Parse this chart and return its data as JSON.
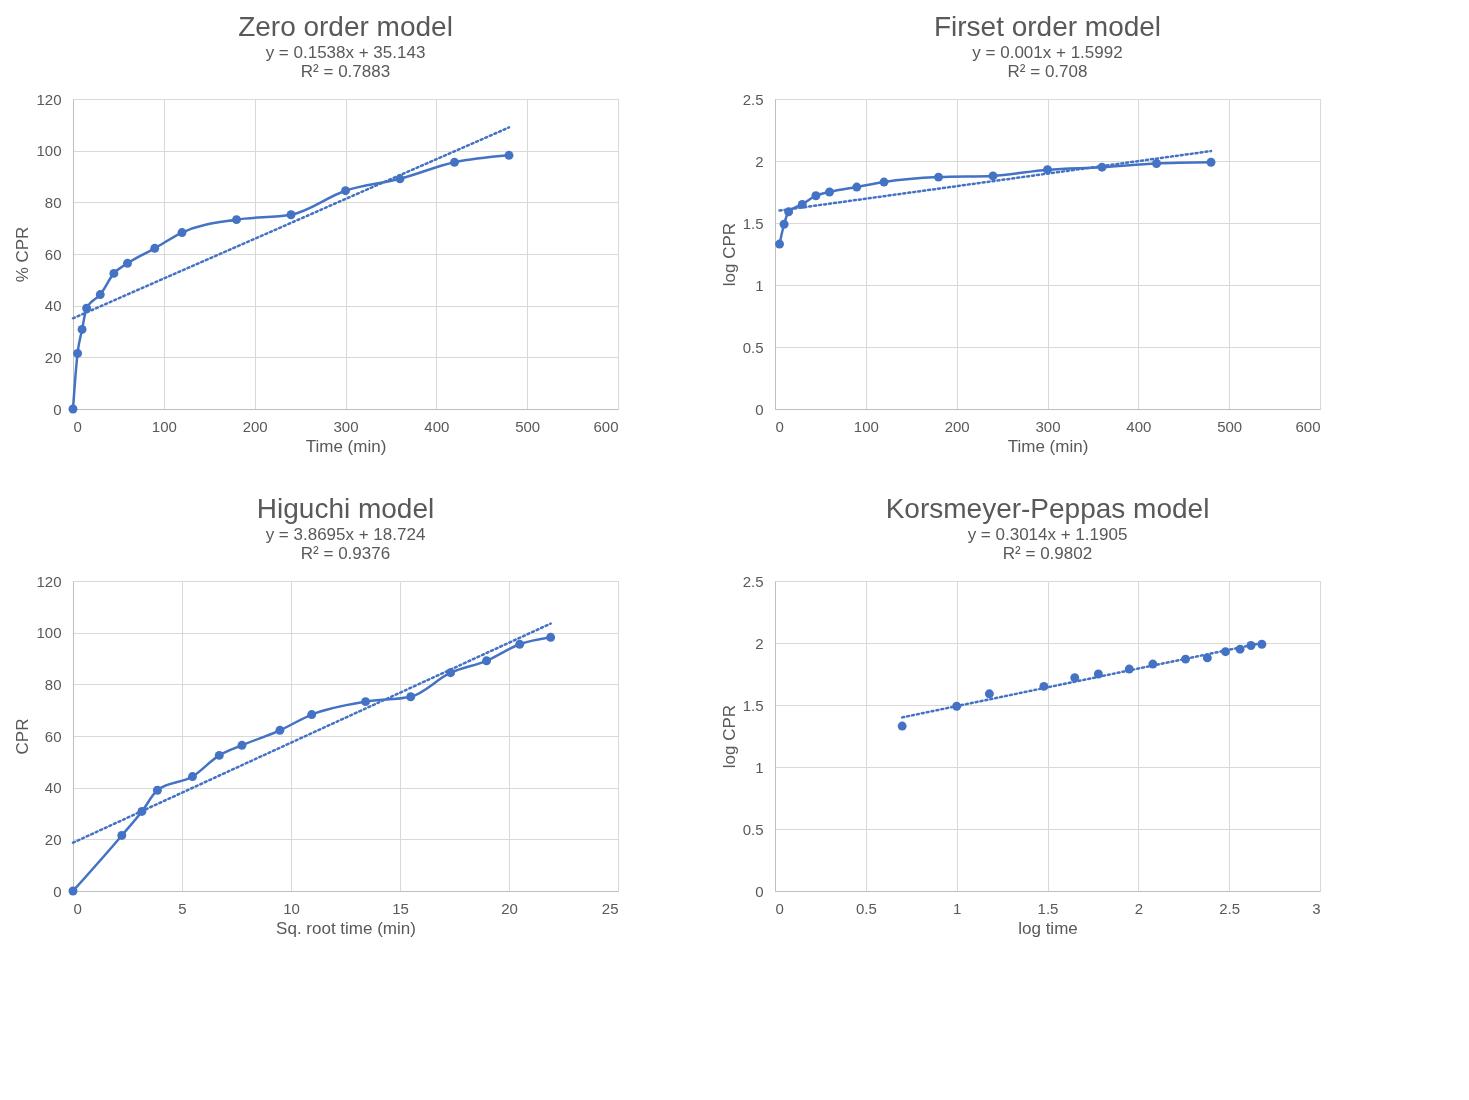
{
  "chart_data": [
    {
      "type": "line",
      "title": "Zero order model",
      "annotations": [
        "y = 0.1538x + 35.143",
        "R² = 0.7883"
      ],
      "xlabel": "Time (min)",
      "ylabel": "% CPR",
      "xlim": [
        0,
        600
      ],
      "xticks": [
        0,
        100,
        200,
        300,
        400,
        500,
        600
      ],
      "ylim": [
        0,
        120
      ],
      "yticks": [
        0,
        20,
        40,
        60,
        80,
        100,
        120
      ],
      "grid": true,
      "series": [
        {
          "color": "#4472c4",
          "marker": "circle",
          "line_style": "solid",
          "x": [
            0,
            5,
            10,
            15,
            30,
            45,
            60,
            90,
            120,
            180,
            240,
            300,
            360,
            420,
            480
          ],
          "values": [
            0,
            21.5,
            30.8,
            39,
            44.3,
            52.5,
            56.4,
            62.2,
            68.3,
            73.3,
            75.2,
            84.5,
            89.1,
            95.5,
            98.2
          ]
        },
        {
          "color": "#4472c4",
          "marker": "none",
          "line_style": "dotted",
          "x": [
            0,
            480
          ],
          "values": [
            35.1,
            109
          ]
        }
      ]
    },
    {
      "type": "line",
      "title": "Firset order model",
      "annotations": [
        "y = 0.001x + 1.5992",
        "R² = 0.708"
      ],
      "xlabel": "Time (min)",
      "ylabel": "log CPR",
      "xlim": [
        0,
        600
      ],
      "xticks": [
        0,
        100,
        200,
        300,
        400,
        500,
        600
      ],
      "ylim": [
        0,
        2.5
      ],
      "yticks": [
        0,
        0.5,
        1,
        1.5,
        2,
        2.5
      ],
      "grid": true,
      "series": [
        {
          "color": "#4472c4",
          "marker": "circle",
          "line_style": "solid",
          "x": [
            5,
            10,
            15,
            30,
            45,
            60,
            90,
            120,
            180,
            240,
            300,
            360,
            420,
            480
          ],
          "values": [
            1.33,
            1.49,
            1.59,
            1.65,
            1.72,
            1.75,
            1.79,
            1.83,
            1.87,
            1.88,
            1.93,
            1.95,
            1.98,
            1.99
          ]
        },
        {
          "color": "#4472c4",
          "marker": "none",
          "line_style": "dotted",
          "x": [
            5,
            480
          ],
          "values": [
            1.6,
            2.08
          ]
        }
      ]
    },
    {
      "type": "line",
      "title": "Higuchi model",
      "annotations": [
        "y = 3.8695x + 18.724",
        "R² = 0.9376"
      ],
      "xlabel": "Sq. root time (min)",
      "ylabel": "CPR",
      "xlim": [
        0,
        25
      ],
      "xticks": [
        0,
        5,
        10,
        15,
        20,
        25
      ],
      "ylim": [
        0,
        120
      ],
      "yticks": [
        0,
        20,
        40,
        60,
        80,
        100,
        120
      ],
      "grid": true,
      "series": [
        {
          "color": "#4472c4",
          "marker": "circle",
          "line_style": "solid",
          "x": [
            0,
            2.24,
            3.16,
            3.87,
            5.48,
            6.71,
            7.75,
            9.49,
            10.95,
            13.42,
            15.49,
            17.32,
            18.97,
            20.49,
            21.91
          ],
          "values": [
            0,
            21.5,
            30.8,
            39,
            44.3,
            52.5,
            56.4,
            62.2,
            68.3,
            73.3,
            75.2,
            84.5,
            89.1,
            95.5,
            98.2
          ]
        },
        {
          "color": "#4472c4",
          "marker": "none",
          "line_style": "dotted",
          "x": [
            0,
            21.91
          ],
          "values": [
            18.7,
            103.5
          ]
        }
      ]
    },
    {
      "type": "scatter",
      "title": "Korsmeyer-Peppas model",
      "annotations": [
        "y = 0.3014x + 1.1905",
        "R² = 0.9802"
      ],
      "xlabel": "log time",
      "ylabel": "log CPR",
      "xlim": [
        0,
        3
      ],
      "xticks": [
        0,
        0.5,
        1,
        1.5,
        2,
        2.5,
        3
      ],
      "ylim": [
        0,
        2.5
      ],
      "yticks": [
        0,
        0.5,
        1,
        1.5,
        2,
        2.5
      ],
      "grid": true,
      "series": [
        {
          "color": "#4472c4",
          "marker": "circle",
          "x": [
            0.7,
            1,
            1.18,
            1.48,
            1.65,
            1.78,
            1.95,
            2.08,
            2.26,
            2.38,
            2.48,
            2.56,
            2.62,
            2.68
          ],
          "values": [
            1.33,
            1.49,
            1.59,
            1.65,
            1.72,
            1.75,
            1.79,
            1.83,
            1.87,
            1.88,
            1.93,
            1.95,
            1.98,
            1.99
          ]
        },
        {
          "type": "line",
          "color": "#4472c4",
          "marker": "none",
          "line_style": "dotted",
          "x": [
            0.7,
            2.68
          ],
          "values": [
            1.4,
            2
          ]
        }
      ]
    }
  ]
}
